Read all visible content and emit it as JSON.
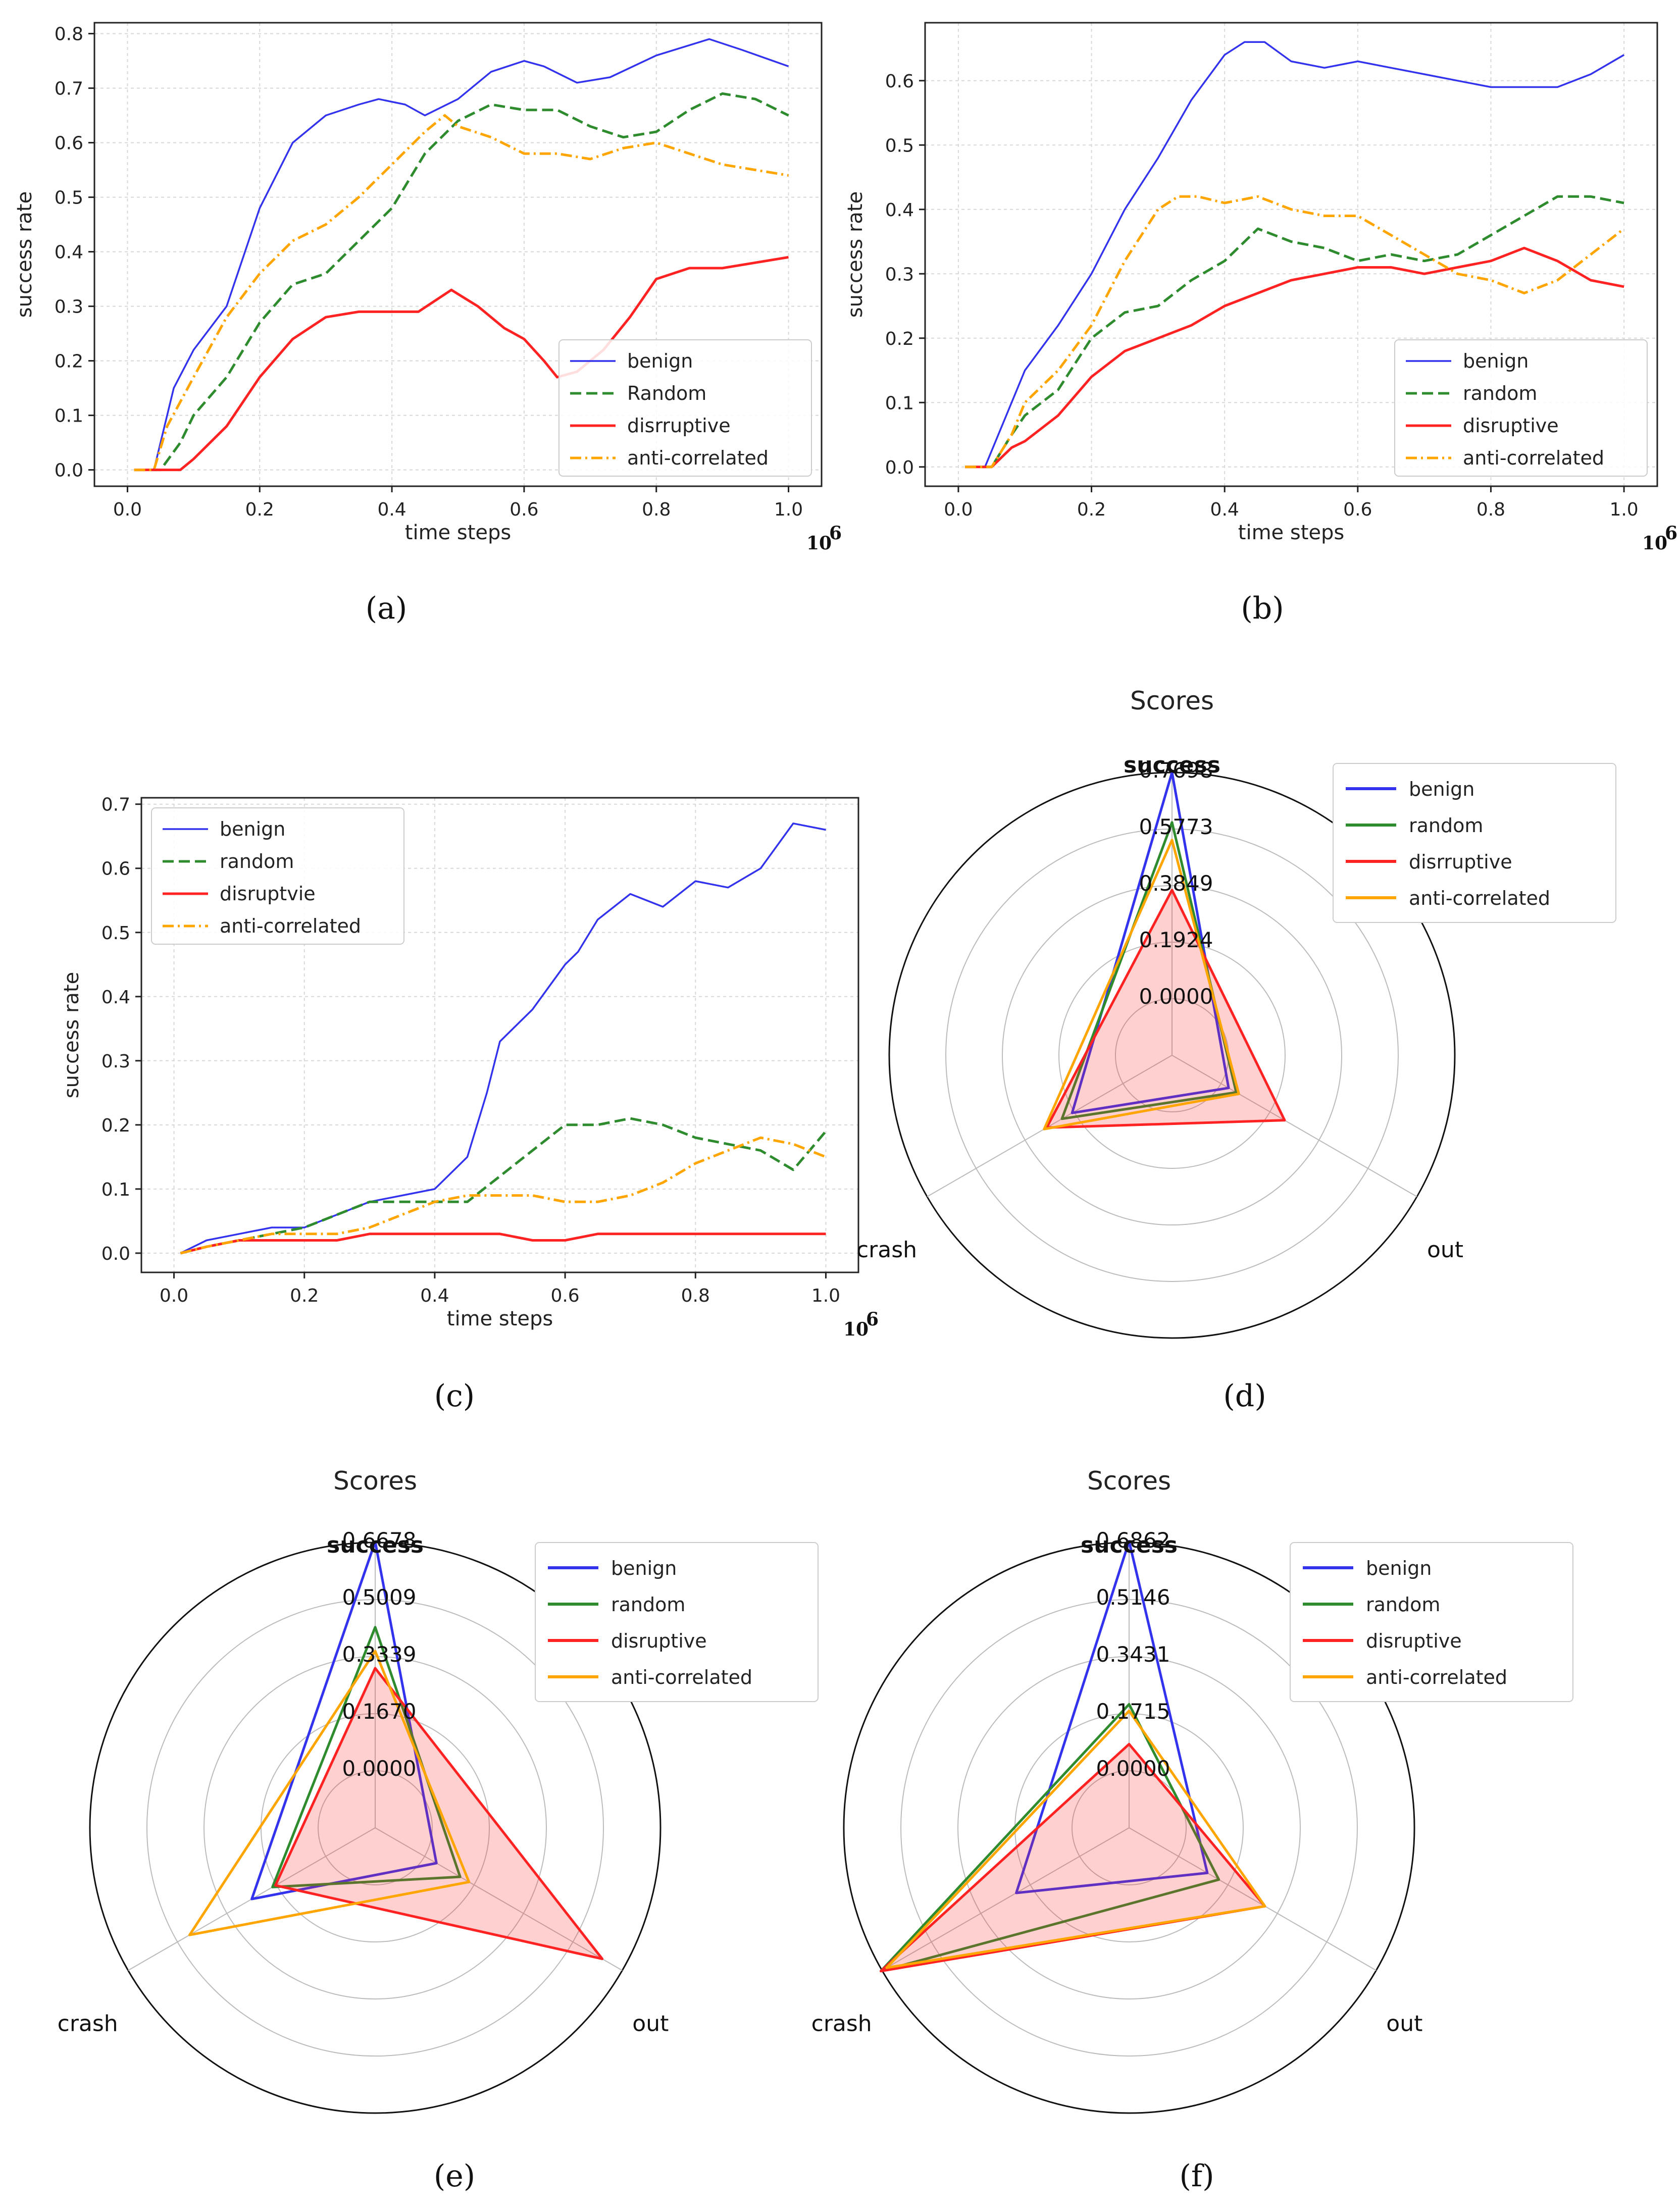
{
  "colors": {
    "benign": "#3333ee",
    "random": "#2e8b2e",
    "disruptive": "#ff2222",
    "anti": "#ffa500"
  },
  "chart_data": [
    {
      "panel": "(a)",
      "type": "line",
      "xlabel": "time steps",
      "ylabel": "success rate",
      "x_exponent": "10",
      "x_exponent_power": "6",
      "xlim": [
        -0.05,
        1.05
      ],
      "ylim": [
        -0.03,
        0.82
      ],
      "xticks": [
        0.0,
        0.2,
        0.4,
        0.6,
        0.8,
        1.0
      ],
      "yticks": [
        0.0,
        0.1,
        0.2,
        0.3,
        0.4,
        0.5,
        0.6,
        0.7,
        0.8
      ],
      "legend_position": "lower-right",
      "series": [
        {
          "name": "benign",
          "key": "benign",
          "style": "solid",
          "x": [
            0.01,
            0.04,
            0.05,
            0.07,
            0.1,
            0.15,
            0.2,
            0.25,
            0.3,
            0.35,
            0.38,
            0.42,
            0.45,
            0.5,
            0.55,
            0.6,
            0.63,
            0.68,
            0.73,
            0.8,
            0.88,
            0.93,
            1.0
          ],
          "y": [
            0.0,
            0.0,
            0.05,
            0.15,
            0.22,
            0.3,
            0.48,
            0.6,
            0.65,
            0.67,
            0.68,
            0.67,
            0.65,
            0.68,
            0.73,
            0.75,
            0.74,
            0.71,
            0.72,
            0.76,
            0.79,
            0.77,
            0.74
          ]
        },
        {
          "name": "Random",
          "key": "random",
          "style": "dashed",
          "x": [
            0.01,
            0.05,
            0.08,
            0.1,
            0.15,
            0.2,
            0.25,
            0.3,
            0.35,
            0.4,
            0.45,
            0.5,
            0.55,
            0.6,
            0.65,
            0.7,
            0.75,
            0.8,
            0.85,
            0.9,
            0.95,
            1.0
          ],
          "y": [
            0.0,
            0.0,
            0.05,
            0.1,
            0.17,
            0.27,
            0.34,
            0.36,
            0.42,
            0.48,
            0.58,
            0.64,
            0.67,
            0.66,
            0.66,
            0.63,
            0.61,
            0.62,
            0.66,
            0.69,
            0.68,
            0.65
          ]
        },
        {
          "name": "disrruptive",
          "key": "disruptive",
          "style": "solid",
          "x": [
            0.01,
            0.08,
            0.1,
            0.15,
            0.2,
            0.25,
            0.3,
            0.35,
            0.4,
            0.44,
            0.49,
            0.53,
            0.57,
            0.6,
            0.63,
            0.65,
            0.68,
            0.72,
            0.76,
            0.8,
            0.85,
            0.9,
            0.95,
            1.0
          ],
          "y": [
            0.0,
            0.0,
            0.02,
            0.08,
            0.17,
            0.24,
            0.28,
            0.29,
            0.29,
            0.29,
            0.33,
            0.3,
            0.26,
            0.24,
            0.2,
            0.17,
            0.18,
            0.22,
            0.28,
            0.35,
            0.37,
            0.37,
            0.38,
            0.39
          ]
        },
        {
          "name": "anti-correlated",
          "key": "anti",
          "style": "dashdot",
          "x": [
            0.01,
            0.04,
            0.06,
            0.1,
            0.15,
            0.2,
            0.25,
            0.3,
            0.35,
            0.4,
            0.45,
            0.48,
            0.5,
            0.55,
            0.6,
            0.65,
            0.7,
            0.75,
            0.8,
            0.85,
            0.9,
            0.95,
            1.0
          ],
          "y": [
            0.0,
            0.0,
            0.08,
            0.17,
            0.28,
            0.36,
            0.42,
            0.45,
            0.5,
            0.56,
            0.62,
            0.65,
            0.63,
            0.61,
            0.58,
            0.58,
            0.57,
            0.59,
            0.6,
            0.58,
            0.56,
            0.55,
            0.54
          ]
        }
      ]
    },
    {
      "panel": "(b)",
      "type": "line",
      "xlabel": "time steps",
      "ylabel": "success rate",
      "x_exponent": "10",
      "x_exponent_power": "6",
      "xlim": [
        -0.05,
        1.05
      ],
      "ylim": [
        -0.03,
        0.69
      ],
      "xticks": [
        0.0,
        0.2,
        0.4,
        0.6,
        0.8,
        1.0
      ],
      "yticks": [
        0.0,
        0.1,
        0.2,
        0.3,
        0.4,
        0.5,
        0.6
      ],
      "legend_position": "lower-right",
      "series": [
        {
          "name": "benign",
          "key": "benign",
          "style": "solid",
          "x": [
            0.01,
            0.04,
            0.06,
            0.1,
            0.15,
            0.2,
            0.25,
            0.3,
            0.35,
            0.4,
            0.43,
            0.46,
            0.5,
            0.55,
            0.6,
            0.65,
            0.7,
            0.75,
            0.8,
            0.85,
            0.9,
            0.95,
            1.0
          ],
          "y": [
            0.0,
            0.0,
            0.05,
            0.15,
            0.22,
            0.3,
            0.4,
            0.48,
            0.57,
            0.64,
            0.66,
            0.66,
            0.63,
            0.62,
            0.63,
            0.62,
            0.61,
            0.6,
            0.59,
            0.59,
            0.59,
            0.61,
            0.64
          ]
        },
        {
          "name": "random",
          "key": "random",
          "style": "dashed",
          "x": [
            0.01,
            0.05,
            0.08,
            0.1,
            0.15,
            0.2,
            0.25,
            0.3,
            0.35,
            0.4,
            0.45,
            0.5,
            0.55,
            0.6,
            0.65,
            0.7,
            0.75,
            0.8,
            0.85,
            0.9,
            0.95,
            1.0
          ],
          "y": [
            0.0,
            0.0,
            0.05,
            0.08,
            0.12,
            0.2,
            0.24,
            0.25,
            0.29,
            0.32,
            0.37,
            0.35,
            0.34,
            0.32,
            0.33,
            0.32,
            0.33,
            0.36,
            0.39,
            0.42,
            0.42,
            0.41
          ]
        },
        {
          "name": "disruptive",
          "key": "disruptive",
          "style": "solid",
          "x": [
            0.01,
            0.05,
            0.08,
            0.1,
            0.15,
            0.2,
            0.25,
            0.3,
            0.35,
            0.4,
            0.45,
            0.5,
            0.55,
            0.6,
            0.65,
            0.7,
            0.75,
            0.8,
            0.85,
            0.9,
            0.95,
            1.0
          ],
          "y": [
            0.0,
            0.0,
            0.03,
            0.04,
            0.08,
            0.14,
            0.18,
            0.2,
            0.22,
            0.25,
            0.27,
            0.29,
            0.3,
            0.31,
            0.31,
            0.3,
            0.31,
            0.32,
            0.34,
            0.32,
            0.29,
            0.28
          ]
        },
        {
          "name": "anti-correlated",
          "key": "anti",
          "style": "dashdot",
          "x": [
            0.01,
            0.05,
            0.08,
            0.1,
            0.15,
            0.2,
            0.25,
            0.3,
            0.33,
            0.36,
            0.4,
            0.45,
            0.5,
            0.55,
            0.6,
            0.65,
            0.7,
            0.75,
            0.8,
            0.85,
            0.9,
            0.95,
            1.0
          ],
          "y": [
            0.0,
            0.0,
            0.05,
            0.1,
            0.15,
            0.22,
            0.32,
            0.4,
            0.42,
            0.42,
            0.41,
            0.42,
            0.4,
            0.39,
            0.39,
            0.36,
            0.33,
            0.3,
            0.29,
            0.27,
            0.29,
            0.33,
            0.37
          ]
        }
      ]
    },
    {
      "panel": "(c)",
      "type": "line",
      "xlabel": "time steps",
      "ylabel": "success rate",
      "x_exponent": "10",
      "x_exponent_power": "6",
      "xlim": [
        -0.05,
        1.05
      ],
      "ylim": [
        -0.03,
        0.71
      ],
      "xticks": [
        0.0,
        0.2,
        0.4,
        0.6,
        0.8,
        1.0
      ],
      "yticks": [
        0.0,
        0.1,
        0.2,
        0.3,
        0.4,
        0.5,
        0.6,
        0.7
      ],
      "legend_position": "upper-left",
      "series": [
        {
          "name": "benign",
          "key": "benign",
          "style": "solid",
          "x": [
            0.01,
            0.05,
            0.1,
            0.15,
            0.2,
            0.25,
            0.3,
            0.35,
            0.4,
            0.45,
            0.48,
            0.5,
            0.55,
            0.6,
            0.62,
            0.65,
            0.7,
            0.75,
            0.8,
            0.85,
            0.9,
            0.95,
            1.0
          ],
          "y": [
            0.0,
            0.02,
            0.03,
            0.04,
            0.04,
            0.06,
            0.08,
            0.09,
            0.1,
            0.15,
            0.25,
            0.33,
            0.38,
            0.45,
            0.47,
            0.52,
            0.56,
            0.54,
            0.58,
            0.57,
            0.6,
            0.67,
            0.66
          ]
        },
        {
          "name": "random",
          "key": "random",
          "style": "dashed",
          "x": [
            0.01,
            0.05,
            0.1,
            0.15,
            0.2,
            0.25,
            0.3,
            0.35,
            0.4,
            0.45,
            0.5,
            0.55,
            0.6,
            0.65,
            0.7,
            0.75,
            0.8,
            0.85,
            0.9,
            0.95,
            1.0
          ],
          "y": [
            0.0,
            0.01,
            0.02,
            0.03,
            0.04,
            0.06,
            0.08,
            0.08,
            0.08,
            0.08,
            0.12,
            0.16,
            0.2,
            0.2,
            0.21,
            0.2,
            0.18,
            0.17,
            0.16,
            0.13,
            0.19
          ]
        },
        {
          "name": "disruptvie",
          "key": "disruptive",
          "style": "solid",
          "x": [
            0.01,
            0.05,
            0.1,
            0.15,
            0.2,
            0.25,
            0.3,
            0.35,
            0.4,
            0.45,
            0.5,
            0.55,
            0.6,
            0.65,
            0.7,
            0.75,
            0.8,
            0.85,
            0.9,
            0.95,
            1.0
          ],
          "y": [
            0.0,
            0.01,
            0.02,
            0.02,
            0.02,
            0.02,
            0.03,
            0.03,
            0.03,
            0.03,
            0.03,
            0.02,
            0.02,
            0.03,
            0.03,
            0.03,
            0.03,
            0.03,
            0.03,
            0.03,
            0.03
          ]
        },
        {
          "name": "anti-correlated",
          "key": "anti",
          "style": "dashdot",
          "x": [
            0.01,
            0.05,
            0.1,
            0.15,
            0.2,
            0.25,
            0.3,
            0.35,
            0.4,
            0.45,
            0.5,
            0.55,
            0.6,
            0.65,
            0.7,
            0.75,
            0.8,
            0.85,
            0.9,
            0.95,
            1.0
          ],
          "y": [
            0.0,
            0.01,
            0.02,
            0.03,
            0.03,
            0.03,
            0.04,
            0.06,
            0.08,
            0.09,
            0.09,
            0.09,
            0.08,
            0.08,
            0.09,
            0.11,
            0.14,
            0.16,
            0.18,
            0.17,
            0.15
          ]
        }
      ]
    },
    {
      "panel": "(d)",
      "type": "radar",
      "title": "Scores",
      "axes": [
        "success",
        "out",
        "crash"
      ],
      "rmax": 0.7698,
      "rticks": [
        0.0,
        0.1924,
        0.3849,
        0.5773,
        0.7698
      ],
      "rtick_labels": [
        "0.0000",
        "0.1924",
        "0.3849",
        "0.5773",
        "0.7698"
      ],
      "legend_position": "upper-right",
      "filled_series": "disruptive",
      "series": [
        {
          "name": "benign",
          "key": "benign",
          "values": [
            0.77,
            0.03,
            0.2
          ]
        },
        {
          "name": "random",
          "key": "random",
          "values": [
            0.6,
            0.06,
            0.24
          ]
        },
        {
          "name": "disrruptive",
          "key": "disruptive",
          "values": [
            0.37,
            0.25,
            0.3
          ]
        },
        {
          "name": "anti-correlated",
          "key": "anti",
          "values": [
            0.54,
            0.07,
            0.31
          ]
        }
      ]
    },
    {
      "panel": "(e)",
      "type": "radar",
      "title": "Scores",
      "axes": [
        "success",
        "out",
        "crash"
      ],
      "rmax": 0.6678,
      "rticks": [
        0.0,
        0.167,
        0.3339,
        0.5009,
        0.6678
      ],
      "rtick_labels": [
        "0.0000",
        "0.1670",
        "0.3339",
        "0.5009",
        "0.6678"
      ],
      "legend_position": "upper-right",
      "filled_series": "disruptive",
      "series": [
        {
          "name": "benign",
          "key": "benign",
          "values": [
            0.67,
            0.04,
            0.25
          ]
        },
        {
          "name": "random",
          "key": "random",
          "values": [
            0.42,
            0.12,
            0.18
          ]
        },
        {
          "name": "disruptive",
          "key": "disruptive",
          "values": [
            0.3,
            0.6,
            0.17
          ]
        },
        {
          "name": "anti-correlated",
          "key": "anti",
          "values": [
            0.35,
            0.15,
            0.46
          ]
        }
      ]
    },
    {
      "panel": "(f)",
      "type": "radar",
      "title": "Scores",
      "axes": [
        "success",
        "out",
        "crash"
      ],
      "rmax": 0.6862,
      "rticks": [
        0.0,
        0.1715,
        0.3431,
        0.5146,
        0.6862
      ],
      "rtick_labels": [
        "0.0000",
        "0.1715",
        "0.3431",
        "0.5146",
        "0.6862"
      ],
      "legend_position": "upper-right",
      "filled_series": "disruptive",
      "series": [
        {
          "name": "benign",
          "key": "benign",
          "values": [
            0.69,
            0.1,
            0.22
          ]
        },
        {
          "name": "random",
          "key": "random",
          "values": [
            0.2,
            0.14,
            0.69
          ]
        },
        {
          "name": "disruptive",
          "key": "disruptive",
          "values": [
            0.08,
            0.3,
            0.69
          ]
        },
        {
          "name": "anti-correlated",
          "key": "anti",
          "values": [
            0.18,
            0.3,
            0.67
          ]
        }
      ]
    }
  ]
}
